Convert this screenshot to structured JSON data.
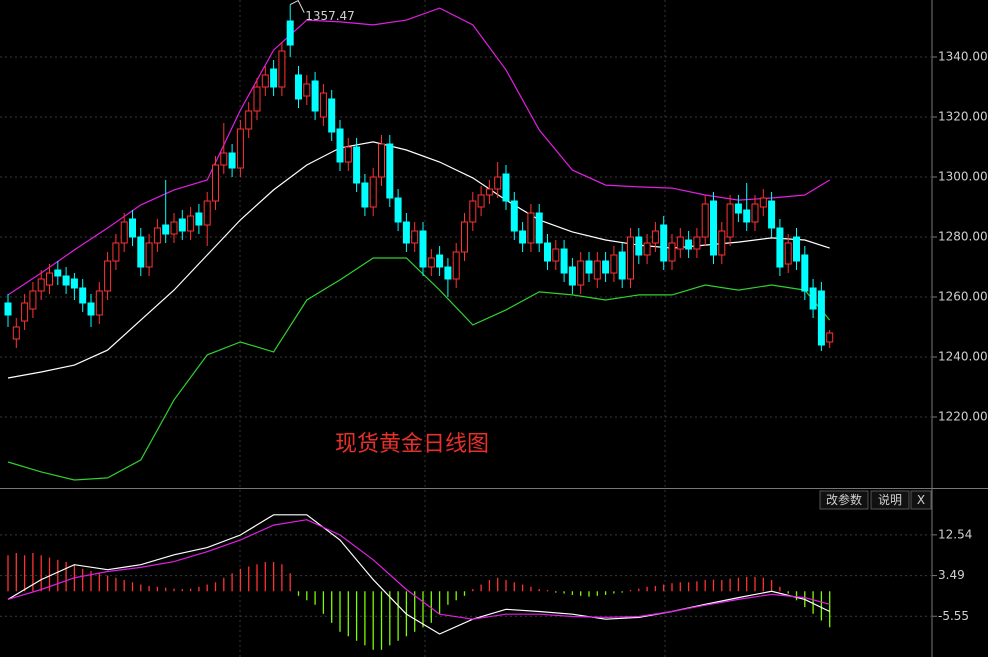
{
  "chart_data": [
    {
      "type": "candlestick",
      "annotation": "现货黄金日线图",
      "annotation_color": "#e8302a",
      "up_color": "#ff3232",
      "down_color": "#00ffff",
      "ylim": [
        1197,
        1359
      ],
      "yticks": [
        {
          "value": 1220,
          "label": "1220.00"
        },
        {
          "value": 1240,
          "label": "1240.00"
        },
        {
          "value": 1260,
          "label": "1260.00"
        },
        {
          "value": 1280,
          "label": "1280.00"
        },
        {
          "value": 1300,
          "label": "1300.00"
        },
        {
          "value": 1320,
          "label": "1320.00"
        },
        {
          "value": 1340,
          "label": "1340.00"
        }
      ],
      "grid": true,
      "open": [
        1258,
        1246,
        1252,
        1256,
        1262,
        1264,
        1269,
        1267,
        1266,
        1263,
        1258,
        1254,
        1262,
        1272,
        1278,
        1286,
        1280,
        1270,
        1278,
        1284,
        1281,
        1286,
        1282,
        1288,
        1284,
        1292,
        1304,
        1308,
        1303,
        1316,
        1322,
        1330,
        1336,
        1330,
        1352,
        1334,
        1327,
        1332,
        1320,
        1326,
        1316,
        1305,
        1310,
        1298,
        1290,
        1300,
        1311,
        1293,
        1285,
        1278,
        1282,
        1270,
        1274,
        1270,
        1266,
        1275,
        1285,
        1290,
        1294,
        1296,
        1301,
        1292,
        1282,
        1278,
        1288,
        1278,
        1272,
        1276,
        1270,
        1264,
        1272,
        1266,
        1272,
        1268,
        1275,
        1266,
        1280,
        1274,
        1278,
        1284,
        1272,
        1276,
        1279,
        1276,
        1280,
        1292,
        1274,
        1280,
        1291,
        1289,
        1285,
        1290,
        1292,
        1283,
        1271,
        1280,
        1274,
        1263,
        1262,
        1245
      ],
      "high": [
        1261,
        1253,
        1261,
        1265,
        1269,
        1271,
        1272,
        1270,
        1268,
        1266,
        1261,
        1265,
        1275,
        1281,
        1288,
        1289,
        1283,
        1281,
        1286,
        1299,
        1288,
        1289,
        1290,
        1291,
        1295,
        1307,
        1318,
        1311,
        1319,
        1325,
        1333,
        1337,
        1339,
        1345,
        1357.47,
        1337,
        1334,
        1335,
        1331,
        1329,
        1319,
        1313,
        1313,
        1301,
        1303,
        1314,
        1314,
        1296,
        1288,
        1285,
        1285,
        1276,
        1277,
        1273,
        1278,
        1288,
        1295,
        1297,
        1299,
        1305,
        1304,
        1295,
        1285,
        1291,
        1291,
        1281,
        1279,
        1279,
        1273,
        1275,
        1275,
        1275,
        1275,
        1277,
        1278,
        1283,
        1283,
        1281,
        1285,
        1287,
        1281,
        1283,
        1282,
        1283,
        1294,
        1295,
        1285,
        1294,
        1294,
        1298,
        1294,
        1296,
        1295,
        1286,
        1281,
        1283,
        1277,
        1266,
        1265,
        1249
      ],
      "low": [
        1250,
        1243,
        1249,
        1253,
        1259,
        1261,
        1264,
        1261,
        1259,
        1255,
        1250,
        1251,
        1259,
        1269,
        1275,
        1277,
        1267,
        1267,
        1275,
        1278,
        1278,
        1279,
        1279,
        1281,
        1277,
        1289,
        1301,
        1300,
        1300,
        1313,
        1319,
        1327,
        1327,
        1327,
        1340,
        1323,
        1324,
        1319,
        1317,
        1312,
        1302,
        1302,
        1295,
        1287,
        1287,
        1297,
        1290,
        1282,
        1275,
        1275,
        1267,
        1267,
        1267,
        1260,
        1263,
        1272,
        1282,
        1287,
        1291,
        1293,
        1289,
        1279,
        1275,
        1275,
        1275,
        1269,
        1269,
        1265,
        1261,
        1261,
        1265,
        1263,
        1265,
        1265,
        1263,
        1263,
        1271,
        1271,
        1275,
        1269,
        1269,
        1273,
        1273,
        1273,
        1277,
        1271,
        1271,
        1277,
        1285,
        1282,
        1282,
        1287,
        1280,
        1267,
        1268,
        1269,
        1259,
        1253,
        1242,
        1243
      ],
      "close": [
        1254,
        1250,
        1258,
        1262,
        1266,
        1268,
        1267,
        1264,
        1263,
        1258,
        1254,
        1262,
        1272,
        1278,
        1285,
        1280,
        1270,
        1278,
        1283,
        1281,
        1285,
        1282,
        1287,
        1284,
        1292,
        1304,
        1308,
        1303,
        1316,
        1322,
        1330,
        1334,
        1330,
        1342,
        1344,
        1326,
        1331,
        1322,
        1328,
        1315,
        1305,
        1310,
        1298,
        1290,
        1300,
        1311,
        1293,
        1285,
        1278,
        1282,
        1270,
        1273,
        1270,
        1266,
        1275,
        1285,
        1292,
        1294,
        1296,
        1300,
        1292,
        1282,
        1278,
        1288,
        1278,
        1272,
        1276,
        1268,
        1264,
        1272,
        1268,
        1272,
        1268,
        1274,
        1266,
        1280,
        1274,
        1278,
        1282,
        1272,
        1278,
        1280,
        1276,
        1280,
        1291,
        1274,
        1282,
        1291,
        1288,
        1285,
        1291,
        1293,
        1283,
        1270,
        1278,
        1272,
        1262,
        1256,
        1244,
        1248
      ],
      "band_x": [
        0,
        4,
        8,
        12,
        16,
        20,
        24,
        28,
        32,
        36,
        40,
        44,
        48,
        52,
        56,
        60,
        64,
        68,
        72,
        76,
        80,
        84,
        88,
        92,
        96,
        99
      ],
      "series": [
        {
          "color": "#e020e0",
          "values": [
            1260.7,
            1268,
            1275.7,
            1283,
            1290.7,
            1295.7,
            1299,
            1322.3,
            1342.3,
            1352.3,
            1351.7,
            1350.7,
            1352.3,
            1356.3,
            1350.7,
            1335.7,
            1315.7,
            1302.3,
            1297.3,
            1296.7,
            1296.3,
            1294,
            1292.3,
            1293,
            1294,
            1299
          ]
        },
        {
          "color": "#ffffff",
          "values": [
            1233,
            1235,
            1237.3,
            1242.3,
            1252.3,
            1262.3,
            1274,
            1285.7,
            1295.7,
            1304,
            1309.7,
            1311.7,
            1309,
            1305,
            1299.7,
            1292.3,
            1285.7,
            1281.7,
            1279,
            1277.3,
            1276.3,
            1277.3,
            1278.3,
            1279.7,
            1279,
            1276.3
          ]
        },
        {
          "color": "#30d030",
          "values": [
            1205,
            1201.7,
            1199,
            1199.7,
            1205.7,
            1225.7,
            1240.7,
            1245,
            1241.7,
            1259,
            1265.7,
            1273,
            1273,
            1262.3,
            1250.7,
            1255.7,
            1261.7,
            1260.7,
            1259,
            1260.7,
            1260.7,
            1264,
            1262.3,
            1264,
            1262.3,
            1252.3
          ]
        }
      ]
    },
    {
      "type": "macd",
      "ylim": [
        -14.6,
        22.5
      ],
      "yticks": [
        12.54,
        3.49,
        -5.55
      ],
      "grid": true,
      "histogram_colors": [
        "#ff3232",
        "#7cfc00"
      ],
      "histogram": [
        8,
        8.5,
        8,
        8.5,
        8,
        7.5,
        7,
        6.5,
        6,
        5,
        4.5,
        4,
        3.5,
        3,
        2.5,
        2,
        1.5,
        1.2,
        1,
        0.8,
        0.6,
        0.5,
        0.6,
        1,
        1.5,
        2,
        3,
        4,
        5,
        5.5,
        6,
        6.5,
        6.5,
        6,
        4,
        -1,
        -2,
        -3,
        -5,
        -7,
        -9,
        -10,
        -11,
        -12,
        -13,
        -13,
        -12,
        -11,
        -10,
        -9,
        -8,
        -7,
        -5,
        -3,
        -2,
        -1,
        0.5,
        1.5,
        2.5,
        3,
        2.5,
        2,
        1.5,
        1,
        0.5,
        0.3,
        -0.3,
        -0.5,
        -0.8,
        -1,
        -1.2,
        -1,
        -0.8,
        -0.5,
        -0.3,
        0.3,
        0.6,
        1,
        1.2,
        1.5,
        1.8,
        2,
        2,
        2.2,
        2.5,
        2.6,
        2.5,
        2.8,
        3,
        3.2,
        3.2,
        3,
        2.5,
        1,
        -0.5,
        -2,
        -3.5,
        -5,
        -6.5,
        -8
      ],
      "x": [
        0,
        4,
        8,
        12,
        16,
        20,
        24,
        28,
        32,
        36,
        40,
        44,
        48,
        52,
        56,
        60,
        64,
        68,
        72,
        76,
        80,
        84,
        88,
        92,
        96,
        99
      ],
      "series": [
        {
          "color": "#ffffff",
          "values": [
            -1.8,
            2.6,
            5.9,
            4.8,
            5.9,
            8.1,
            9.7,
            12.5,
            17,
            17,
            11.4,
            2.6,
            -5.1,
            -9.5,
            -6.2,
            -4,
            -4.5,
            -5.1,
            -6.2,
            -5.8,
            -4.5,
            -2.9,
            -1.4,
            0,
            -1.8,
            -4.5
          ]
        },
        {
          "color": "#e020e0",
          "values": [
            -1.8,
            0.4,
            3,
            4.4,
            5.3,
            6.6,
            8.8,
            11.4,
            14.7,
            15.9,
            12.5,
            7,
            0.4,
            -5.1,
            -6.2,
            -5.1,
            -5.1,
            -5.6,
            -5.8,
            -5.6,
            -4.5,
            -3.1,
            -1.8,
            -0.7,
            -1.4,
            -2.9
          ]
        }
      ]
    }
  ],
  "toolbar": [
    "改参数",
    "说明",
    "X"
  ]
}
